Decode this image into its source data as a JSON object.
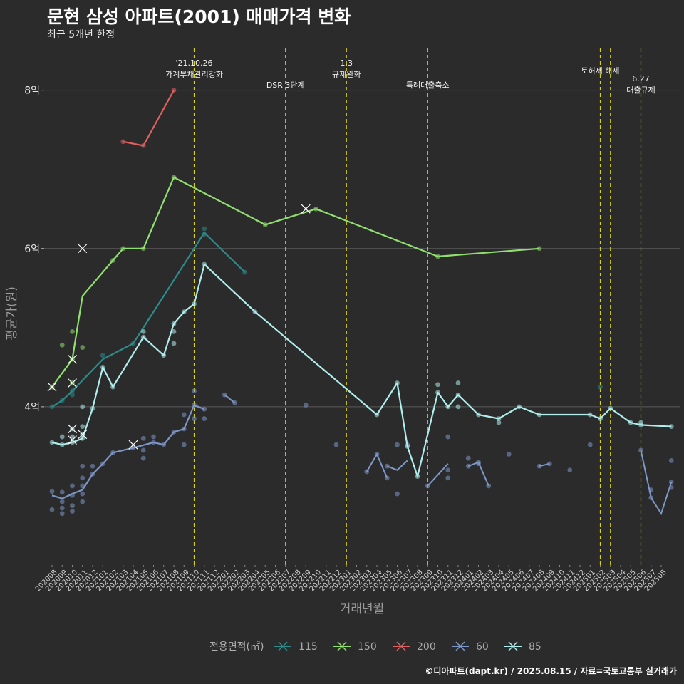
{
  "header": {
    "title": "문현 삼성 아파트(2001) 매매가격 변화",
    "subtitle": "최근 5개년 한정",
    "caption": "©디아파트(dapt.kr) / 2025.08.15 / 자료=국토교통부 실거래가"
  },
  "chart_data": {
    "type": "line",
    "title": "문현 삼성 아파트(2001) 매매가격 변화",
    "subtitle": "최근 5개년 한정",
    "xlabel": "거래년월",
    "ylabel": "평균가(원)",
    "ylim": [
      2.0,
      8.6
    ],
    "grid": true,
    "y_ticks": [
      {
        "value": 4,
        "label": "4억"
      },
      {
        "value": 6,
        "label": "6억"
      },
      {
        "value": 8,
        "label": "8억"
      }
    ],
    "x_categories": [
      "202008",
      "202009",
      "202010",
      "202011",
      "202012",
      "202101",
      "202102",
      "202103",
      "202104",
      "202105",
      "202106",
      "202107",
      "202108",
      "202109",
      "202110",
      "202111",
      "202112",
      "202201",
      "202202",
      "202203",
      "202204",
      "202205",
      "202206",
      "202207",
      "202208",
      "202209",
      "202210",
      "202211",
      "202212",
      "202301",
      "202302",
      "202303",
      "202304",
      "202305",
      "202306",
      "202307",
      "202308",
      "202309",
      "202310",
      "202311",
      "202312",
      "202401",
      "202402",
      "202403",
      "202404",
      "202405",
      "202406",
      "202407",
      "202408",
      "202409",
      "202410",
      "202411",
      "202412",
      "202501",
      "202502",
      "202503",
      "202504",
      "202505",
      "202506",
      "202507",
      "202508"
    ],
    "legend": {
      "title": "전용면적(㎡)",
      "position": "bottom",
      "entries": [
        {
          "label": "115",
          "color": "#2e8b8b"
        },
        {
          "label": "150",
          "color": "#90e070"
        },
        {
          "label": "200",
          "color": "#e06060"
        },
        {
          "label": "60",
          "color": "#7d97c8"
        },
        {
          "label": "85",
          "color": "#b0eeee"
        }
      ]
    },
    "events": [
      {
        "x": 14.0,
        "lines": [
          "'21.10.26",
          "가계부채관리강화"
        ],
        "level": 0
      },
      {
        "x": 23.0,
        "lines": [
          "DSR 3단계"
        ],
        "level": 2
      },
      {
        "x": 29.0,
        "lines": [
          "1.3",
          "규제완화"
        ],
        "level": 0
      },
      {
        "x": 37.0,
        "lines": [
          "특례대출축소"
        ],
        "level": 2
      },
      {
        "x": 54.0,
        "lines": [
          "토허제 해제"
        ],
        "level": 1,
        "offset": 0
      },
      {
        "x": 55.0,
        "lines": [],
        "level": 1
      },
      {
        "x": 58.0,
        "lines": [
          "6.27",
          "대출규제"
        ],
        "level": 3
      }
    ],
    "series": [
      {
        "name": "115",
        "color": "#2e8b8b",
        "line": [
          [
            0,
            4.0
          ],
          [
            1,
            4.08
          ],
          [
            2,
            4.2
          ],
          [
            5,
            4.6
          ],
          [
            8,
            4.8
          ],
          [
            15,
            6.2
          ],
          [
            19,
            5.7
          ]
        ],
        "points": [
          [
            0,
            4.0
          ],
          [
            1,
            4.08
          ],
          [
            2,
            4.2
          ],
          [
            2,
            4.15
          ],
          [
            5,
            4.65
          ],
          [
            8,
            4.8
          ],
          [
            15,
            6.25
          ],
          [
            15,
            6.18
          ],
          [
            19,
            5.7
          ],
          [
            54,
            4.25
          ]
        ],
        "crosses": []
      },
      {
        "name": "150",
        "color": "#90e070",
        "line": [
          [
            0,
            4.25
          ],
          [
            2,
            4.6
          ],
          [
            3,
            5.4
          ],
          [
            6,
            5.85
          ],
          [
            7,
            6.0
          ],
          [
            9,
            6.0
          ],
          [
            12,
            6.9
          ],
          [
            21,
            6.3
          ],
          [
            26,
            6.5
          ],
          [
            38,
            5.9
          ],
          [
            48,
            6.0
          ]
        ],
        "points": [
          [
            0,
            4.25
          ],
          [
            1,
            4.78
          ],
          [
            2,
            4.95
          ],
          [
            2,
            4.6
          ],
          [
            2,
            4.3
          ],
          [
            3,
            4.75
          ],
          [
            6,
            5.85
          ],
          [
            7,
            6.0
          ],
          [
            9,
            6.0
          ],
          [
            12,
            6.9
          ],
          [
            21,
            6.3
          ],
          [
            26,
            6.5
          ],
          [
            38,
            5.9
          ],
          [
            48,
            6.0
          ]
        ],
        "crosses": [
          [
            0,
            4.25
          ],
          [
            2,
            4.6
          ],
          [
            2,
            4.3
          ],
          [
            3,
            6.0
          ],
          [
            25,
            6.5
          ]
        ]
      },
      {
        "name": "200",
        "color": "#e06060",
        "line": [
          [
            7,
            7.35
          ],
          [
            9,
            7.3
          ],
          [
            12,
            8.0
          ]
        ],
        "points": [
          [
            7,
            7.35
          ],
          [
            9,
            7.3
          ],
          [
            12,
            8.0
          ]
        ],
        "crosses": []
      },
      {
        "name": "60",
        "color": "#7d97c8",
        "line": [
          [
            0,
            2.88
          ],
          [
            1,
            2.84
          ],
          [
            2,
            2.9
          ],
          [
            3,
            2.95
          ],
          [
            4,
            3.15
          ],
          [
            5,
            3.28
          ],
          [
            6,
            3.42
          ],
          [
            8,
            3.48
          ],
          [
            10,
            3.55
          ],
          [
            11,
            3.52
          ],
          [
            12,
            3.68
          ],
          [
            13,
            3.72
          ],
          [
            14,
            4.02
          ],
          [
            15,
            3.97
          ]
        ],
        "points": [
          [
            0,
            2.93
          ],
          [
            0,
            2.7
          ],
          [
            1,
            2.8
          ],
          [
            1,
            2.72
          ],
          [
            1,
            2.65
          ],
          [
            1,
            2.92
          ],
          [
            2,
            2.75
          ],
          [
            2,
            2.68
          ],
          [
            2,
            2.88
          ],
          [
            2,
            3.0
          ],
          [
            3,
            2.9
          ],
          [
            3,
            2.8
          ],
          [
            3,
            3.0
          ],
          [
            3,
            3.1
          ],
          [
            3,
            3.25
          ],
          [
            4,
            3.15
          ],
          [
            4,
            3.25
          ],
          [
            5,
            3.28
          ],
          [
            6,
            3.42
          ],
          [
            8,
            3.48
          ],
          [
            9,
            3.6
          ],
          [
            9,
            3.45
          ],
          [
            9,
            3.35
          ],
          [
            10,
            3.55
          ],
          [
            10,
            3.62
          ],
          [
            11,
            3.52
          ],
          [
            12,
            3.68
          ],
          [
            13,
            3.72
          ],
          [
            13,
            3.9
          ],
          [
            13,
            3.52
          ],
          [
            14,
            4.02
          ],
          [
            14,
            4.2
          ],
          [
            14,
            3.85
          ],
          [
            15,
            3.97
          ],
          [
            15,
            3.85
          ],
          [
            17,
            4.15
          ],
          [
            18,
            4.05
          ],
          [
            25,
            4.02
          ],
          [
            28,
            3.52
          ],
          [
            31,
            3.18
          ],
          [
            32,
            3.4
          ],
          [
            33,
            3.1
          ],
          [
            33,
            3.25
          ],
          [
            34,
            2.9
          ],
          [
            34,
            3.52
          ],
          [
            35,
            3.52
          ],
          [
            37,
            3.0
          ],
          [
            39,
            3.62
          ],
          [
            39,
            3.1
          ],
          [
            39,
            3.2
          ],
          [
            41,
            3.25
          ],
          [
            41,
            3.35
          ],
          [
            42,
            3.28
          ],
          [
            42,
            3.3
          ],
          [
            43,
            3.0
          ],
          [
            45,
            3.4
          ],
          [
            48,
            3.25
          ],
          [
            49,
            3.28
          ],
          [
            51,
            3.2
          ],
          [
            53,
            3.52
          ],
          [
            58,
            3.45
          ],
          [
            59,
            2.85
          ],
          [
            59,
            2.95
          ],
          [
            61,
            2.98
          ],
          [
            61,
            3.05
          ],
          [
            61,
            3.32
          ]
        ],
        "segments": [
          [
            [
              17,
              4.15
            ],
            [
              18,
              4.05
            ]
          ],
          [
            [
              31,
              3.18
            ],
            [
              32,
              3.4
            ],
            [
              33,
              3.1
            ]
          ],
          [
            [
              33,
              3.25
            ],
            [
              34,
              3.2
            ],
            [
              35,
              3.32
            ]
          ],
          [
            [
              37,
              3.0
            ],
            [
              39,
              3.28
            ]
          ],
          [
            [
              41,
              3.25
            ],
            [
              42,
              3.3
            ],
            [
              43,
              3.0
            ]
          ],
          [
            [
              48,
              3.25
            ],
            [
              49,
              3.28
            ]
          ],
          [
            [
              58,
              3.45
            ],
            [
              59,
              2.85
            ],
            [
              60,
              2.65
            ],
            [
              61,
              3.05
            ]
          ]
        ],
        "crosses": [
          [
            8,
            3.52
          ]
        ]
      },
      {
        "name": "85",
        "color": "#b0eeee",
        "line": [
          [
            0,
            3.55
          ],
          [
            1,
            3.52
          ],
          [
            2,
            3.55
          ],
          [
            3,
            3.6
          ],
          [
            4,
            3.98
          ],
          [
            5,
            4.5
          ],
          [
            6,
            4.25
          ],
          [
            9,
            4.88
          ],
          [
            11,
            4.65
          ],
          [
            12,
            5.05
          ],
          [
            13,
            5.2
          ],
          [
            14,
            5.3
          ],
          [
            15,
            5.8
          ],
          [
            20,
            5.2
          ],
          [
            32,
            3.9
          ],
          [
            34,
            4.3
          ],
          [
            35,
            3.5
          ],
          [
            36,
            3.12
          ],
          [
            38,
            4.18
          ],
          [
            39,
            4.0
          ],
          [
            40,
            4.15
          ],
          [
            42,
            3.9
          ],
          [
            44,
            3.85
          ],
          [
            46,
            4.0
          ],
          [
            48,
            3.9
          ],
          [
            53,
            3.9
          ],
          [
            54,
            3.85
          ],
          [
            55,
            3.98
          ],
          [
            57,
            3.8
          ],
          [
            58,
            3.77
          ],
          [
            61,
            3.75
          ]
        ],
        "points": [
          [
            0,
            3.55
          ],
          [
            1,
            3.52
          ],
          [
            1,
            3.62
          ],
          [
            2,
            3.55
          ],
          [
            2,
            3.62
          ],
          [
            2,
            3.72
          ],
          [
            3,
            3.6
          ],
          [
            3,
            3.65
          ],
          [
            3,
            3.75
          ],
          [
            3,
            4.0
          ],
          [
            4,
            3.98
          ],
          [
            5,
            4.5
          ],
          [
            6,
            4.25
          ],
          [
            9,
            4.88
          ],
          [
            9,
            4.95
          ],
          [
            11,
            4.65
          ],
          [
            12,
            5.05
          ],
          [
            12,
            4.95
          ],
          [
            12,
            4.8
          ],
          [
            13,
            5.2
          ],
          [
            14,
            5.3
          ],
          [
            15,
            5.8
          ],
          [
            20,
            5.2
          ],
          [
            32,
            3.9
          ],
          [
            34,
            4.3
          ],
          [
            35,
            3.5
          ],
          [
            36,
            3.12
          ],
          [
            38,
            4.28
          ],
          [
            38,
            4.18
          ],
          [
            39,
            4.0
          ],
          [
            40,
            4.15
          ],
          [
            40,
            4.3
          ],
          [
            40,
            4.0
          ],
          [
            42,
            3.9
          ],
          [
            44,
            3.85
          ],
          [
            44,
            3.8
          ],
          [
            46,
            4.0
          ],
          [
            48,
            3.9
          ],
          [
            53,
            3.9
          ],
          [
            54,
            3.85
          ],
          [
            55,
            3.98
          ],
          [
            57,
            3.8
          ],
          [
            58,
            3.77
          ],
          [
            58,
            3.8
          ],
          [
            61,
            3.75
          ]
        ],
        "crosses": [
          [
            2,
            3.72
          ],
          [
            2,
            3.58
          ],
          [
            3,
            3.65
          ]
        ]
      }
    ]
  }
}
